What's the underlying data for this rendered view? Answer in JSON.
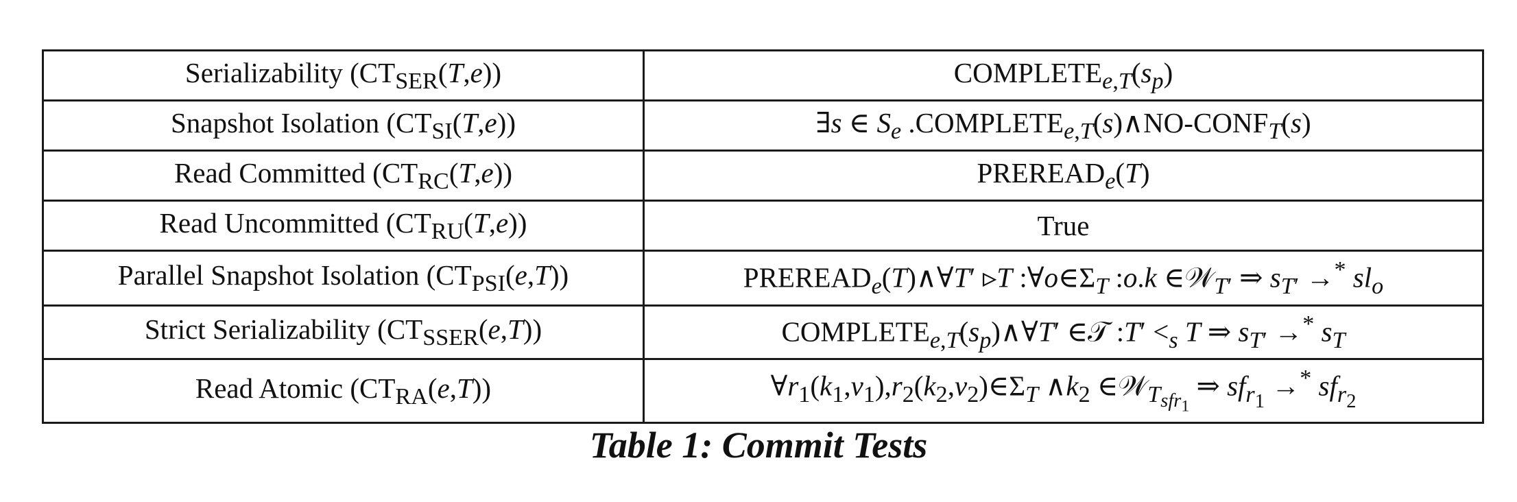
{
  "table": {
    "rows": [
      {
        "label": "Serializability (CT_SER(T, e))",
        "test": "COMPLETE_e,T(s_p)"
      },
      {
        "label": "Snapshot Isolation (CT_SI(T, e))",
        "test": "∃s ∈ S_e . COMPLETE_e,T(s) ∧ NO-CONF_T(s)"
      },
      {
        "label": "Read Committed (CT_RC(T, e))",
        "test": "PREREAD_e(T)"
      },
      {
        "label": "Read Uncommitted (CT_RU(T, e))",
        "test": "True"
      },
      {
        "label": "Parallel Snapshot Isolation (CT_PSI(e, T))",
        "test": "PREREAD_e(T) ∧ ∀T′ ▹ T : ∀o ∈ Σ_T : o.k ∈ 𝒲_T′ ⇒ s_T′ →* sl_o"
      },
      {
        "label": "Strict Serializability (CT_SSER(e, T))",
        "test": "COMPLETE_e,T(s_p) ∧ ∀T′ ∈ 𝒯 : T′ <_s T ⇒ s_T′ →* s_T"
      },
      {
        "label": "Read Atomic (CT_RA(e, T))",
        "test": "∀r₁(k₁, v₁), r₂(k₂, v₂) ∈ Σ_T ∧ k₂ ∈ 𝒲_T_sfr₁ ⇒ sf_r₁ →* sf_r₂"
      }
    ]
  },
  "caption": "Table 1: Commit Tests"
}
